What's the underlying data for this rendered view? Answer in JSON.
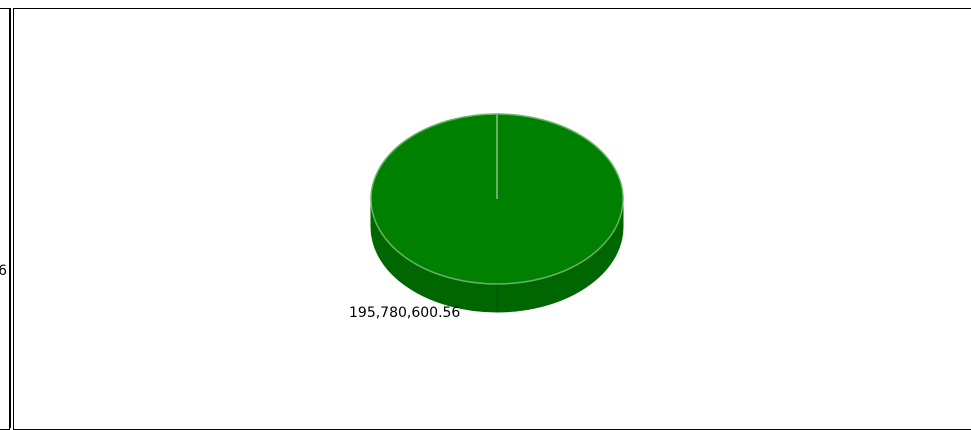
{
  "left_panel": {
    "clipped_label": "6"
  },
  "chart_data": {
    "type": "pie",
    "title": "",
    "slices": [
      {
        "label": "195,780,600.56",
        "value": 195780600.56,
        "color": "#008000",
        "side_color": "#006600",
        "edge_color": "#66b366"
      }
    ],
    "style": "3d"
  }
}
